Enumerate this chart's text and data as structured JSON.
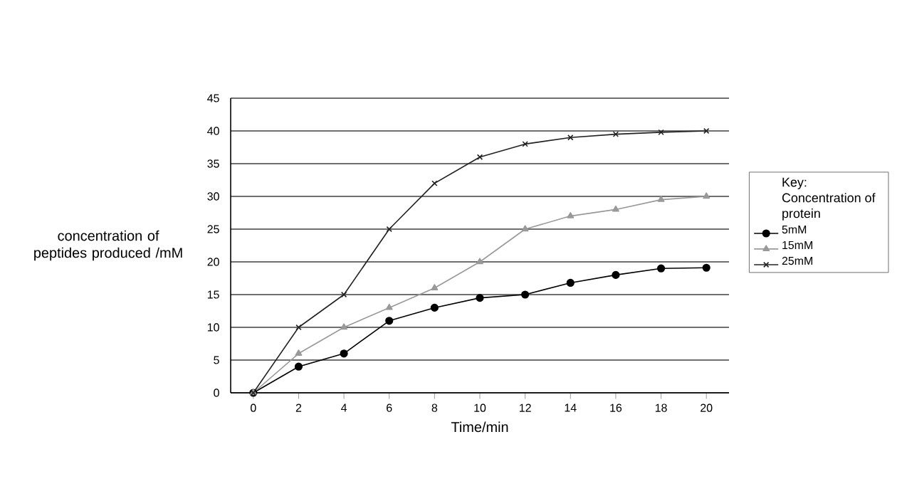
{
  "chart_data": {
    "type": "line",
    "xlabel": "Time/min",
    "ylabel": "concentration of peptides produced /mM",
    "legend_title": "Key: Concentration of protein",
    "x": [
      0,
      2,
      4,
      6,
      8,
      10,
      12,
      14,
      16,
      18,
      20
    ],
    "series": [
      {
        "name": "5mM",
        "color": "#000000",
        "marker": "circle",
        "values": [
          0,
          4,
          6,
          11,
          13,
          14.5,
          15,
          16.8,
          18,
          19,
          19.1
        ]
      },
      {
        "name": "15mM",
        "color": "#999999",
        "marker": "triangle",
        "values": [
          0,
          6,
          10,
          13,
          16,
          20,
          25,
          27,
          28,
          29.5,
          30
        ]
      },
      {
        "name": "25mM",
        "color": "#222222",
        "marker": "cross",
        "values": [
          0,
          10,
          15,
          25,
          32,
          36,
          38,
          39,
          39.5,
          39.8,
          40
        ]
      }
    ],
    "xlim": [
      -1,
      21
    ],
    "ylim": [
      0,
      45
    ],
    "xticks": [
      0,
      2,
      4,
      6,
      8,
      10,
      12,
      14,
      16,
      18,
      20
    ],
    "yticks": [
      0,
      5,
      10,
      15,
      20,
      25,
      30,
      35,
      40,
      45
    ],
    "grid": "y",
    "legend": "right",
    "line_style": "solid"
  }
}
